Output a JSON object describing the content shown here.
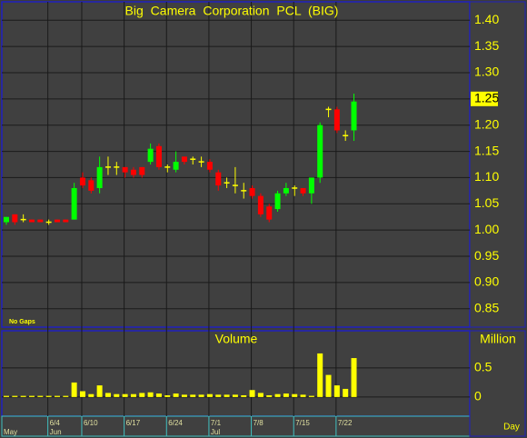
{
  "chart_data": [
    {
      "type": "candlestick",
      "title": "Big Camera Corporation PCL (BIG)",
      "annotation": "No Gaps",
      "categories": [
        null,
        null,
        null,
        null,
        null,
        "6/4",
        null,
        null,
        null,
        "6/10",
        null,
        null,
        null,
        null,
        "6/17",
        null,
        null,
        null,
        null,
        "6/24",
        null,
        null,
        null,
        null,
        "7/1",
        null,
        null,
        null,
        null,
        "7/8",
        null,
        null,
        null,
        null,
        "7/15",
        null,
        null,
        null,
        null,
        "7/22",
        null,
        null
      ],
      "months": [
        "May",
        null,
        null,
        null,
        null,
        "Jun",
        null,
        null,
        null,
        null,
        null,
        null,
        null,
        null,
        null,
        null,
        null,
        null,
        null,
        null,
        null,
        null,
        null,
        null,
        "Jul",
        null,
        null,
        null,
        null,
        null,
        null,
        null,
        null,
        null,
        null,
        null,
        null,
        null,
        null,
        null,
        null,
        null
      ],
      "open": [
        1.015,
        1.03,
        1.02,
        1.02,
        1.02,
        1.015,
        1.02,
        1.02,
        1.02,
        1.1,
        1.095,
        1.08,
        1.12,
        1.12,
        1.12,
        1.115,
        1.12,
        1.13,
        1.16,
        1.12,
        1.115,
        1.14,
        1.135,
        1.13,
        1.13,
        1.11,
        1.09,
        1.085,
        1.075,
        1.08,
        1.065,
        1.045,
        1.04,
        1.07,
        1.08,
        1.08,
        1.07,
        1.1,
        1.23,
        1.23,
        1.18,
        1.19
      ],
      "high": [
        1.025,
        1.03,
        1.03,
        1.02,
        1.02,
        1.02,
        1.02,
        1.02,
        1.09,
        1.11,
        1.1,
        1.14,
        1.14,
        1.13,
        1.12,
        1.12,
        1.12,
        1.165,
        1.165,
        1.125,
        1.15,
        1.14,
        1.14,
        1.14,
        1.135,
        1.115,
        1.1,
        1.12,
        1.09,
        1.085,
        1.07,
        1.05,
        1.075,
        1.09,
        1.085,
        1.08,
        1.1,
        1.205,
        1.235,
        1.235,
        1.19,
        1.26
      ],
      "low": [
        1.01,
        1.01,
        1.015,
        1.015,
        1.015,
        1.01,
        1.015,
        1.015,
        1.02,
        1.08,
        1.07,
        1.07,
        1.105,
        1.105,
        1.1,
        1.1,
        1.1,
        1.125,
        1.115,
        1.11,
        1.11,
        1.125,
        1.125,
        1.12,
        1.11,
        1.075,
        1.08,
        1.07,
        1.06,
        1.06,
        1.025,
        1.015,
        1.035,
        1.065,
        1.065,
        1.065,
        1.05,
        1.09,
        1.215,
        1.185,
        1.17,
        1.17
      ],
      "close": [
        1.025,
        1.015,
        1.02,
        1.015,
        1.015,
        1.015,
        1.015,
        1.015,
        1.08,
        1.085,
        1.075,
        1.12,
        1.12,
        1.12,
        1.11,
        1.105,
        1.105,
        1.155,
        1.12,
        1.12,
        1.13,
        1.13,
        1.135,
        1.13,
        1.115,
        1.085,
        1.09,
        1.085,
        1.075,
        1.065,
        1.03,
        1.02,
        1.07,
        1.08,
        1.08,
        1.07,
        1.1,
        1.2,
        1.23,
        1.19,
        1.18,
        1.245
      ],
      "up_color": "#00ff00",
      "down_color": "#ff0000",
      "flat_color": "#ffff00",
      "ylim": [
        0.815,
        1.435
      ],
      "yticks": [
        0.85,
        {
          "value": 0.9,
          "label": "0.90"
        },
        0.95,
        {
          "value": 1.0,
          "label": "1.00"
        },
        1.05,
        {
          "value": 1.1,
          "label": "1.10"
        },
        1.15,
        {
          "value": 1.2,
          "label": "1.20"
        },
        1.25,
        {
          "value": 1.3,
          "label": "1.30"
        },
        1.35,
        {
          "value": 1.4,
          "label": "1.40"
        }
      ],
      "last_price": 1.25,
      "grid": true
    },
    {
      "type": "bar",
      "title": "Volume",
      "y_label": "Million",
      "x_label": "Day",
      "color": "#ffff00",
      "values": [
        0.02,
        0.02,
        0.02,
        0.02,
        0.02,
        0.02,
        0.02,
        0.02,
        0.25,
        0.1,
        0.05,
        0.2,
        0.07,
        0.05,
        0.05,
        0.05,
        0.07,
        0.08,
        0.06,
        0.03,
        0.06,
        0.04,
        0.04,
        0.04,
        0.05,
        0.04,
        0.04,
        0.04,
        0.03,
        0.12,
        0.07,
        0.03,
        0.05,
        0.06,
        0.05,
        0.04,
        0.02,
        0.75,
        0.38,
        0.2,
        0.14,
        0.67
      ],
      "ylim": [
        -0.33,
        1.14
      ],
      "yticks": [
        0,
        0.5
      ],
      "grid": true
    }
  ]
}
